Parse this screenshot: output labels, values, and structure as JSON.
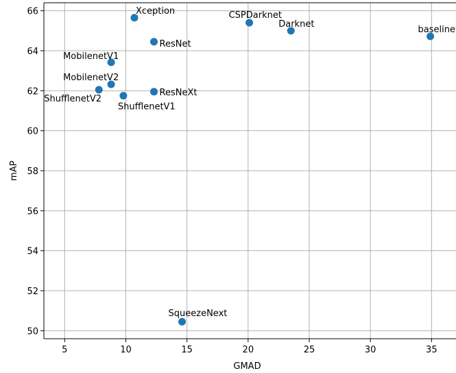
{
  "chart_data": {
    "type": "scatter",
    "title": "",
    "xlabel": "GMAD",
    "ylabel": "mAP",
    "xlim": [
      3.3,
      37.0
    ],
    "ylim": [
      49.6,
      66.4
    ],
    "xticks": [
      5,
      10,
      15,
      20,
      25,
      30,
      35
    ],
    "yticks": [
      50,
      52,
      54,
      56,
      58,
      60,
      62,
      64,
      66
    ],
    "grid": true,
    "marker_color": "#1f77b4",
    "points": [
      {
        "label": "Xception",
        "x": 10.7,
        "y": 65.65
      },
      {
        "label": "CSPDarknet",
        "x": 20.1,
        "y": 65.4
      },
      {
        "label": "Darknet",
        "x": 23.5,
        "y": 65.0
      },
      {
        "label": "baseline",
        "x": 34.9,
        "y": 64.72
      },
      {
        "label": "ResNet",
        "x": 12.3,
        "y": 64.45
      },
      {
        "label": "MobilenetV1",
        "x": 8.8,
        "y": 63.42
      },
      {
        "label": "MobilenetV2",
        "x": 8.8,
        "y": 62.32
      },
      {
        "label": "ShufflenetV2",
        "x": 7.8,
        "y": 62.05
      },
      {
        "label": "ShufflenetV1",
        "x": 9.8,
        "y": 61.75
      },
      {
        "label": "ResNeXt",
        "x": 12.3,
        "y": 61.95
      },
      {
        "label": "SqueezeNext",
        "x": 14.6,
        "y": 50.45
      }
    ]
  }
}
